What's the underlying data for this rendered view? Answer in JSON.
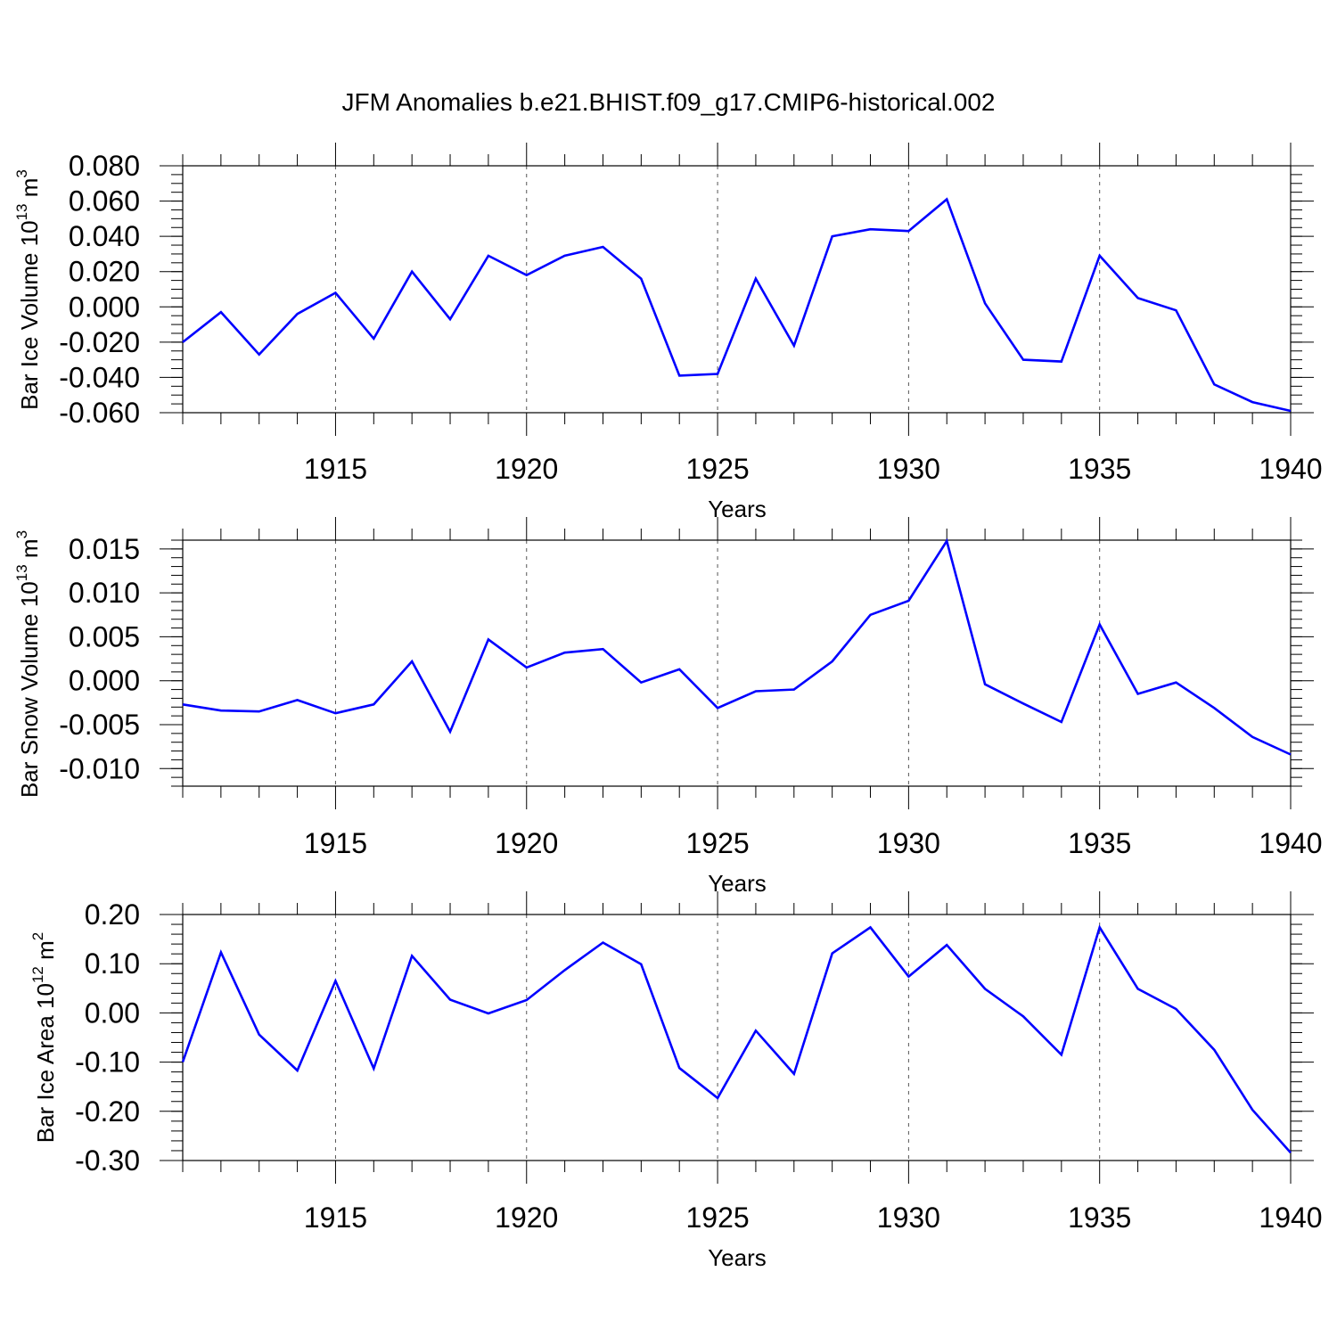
{
  "title": "JFM Anomalies b.e21.BHIST.f09_g17.CMIP6-historical.002",
  "chart_data": [
    {
      "type": "line",
      "ylabel": "Bar Ice Volume",
      "unit_base": "10",
      "unit_exp": "13",
      "unit_name": "m",
      "unit_name_exp": "3",
      "xlabel": "Years",
      "xlim": [
        1911,
        1940
      ],
      "ylim": [
        -0.06,
        0.08
      ],
      "yticks": [
        -0.06,
        -0.04,
        -0.02,
        0.0,
        0.02,
        0.04,
        0.06,
        0.08
      ],
      "yticklabels": [
        "-0.060",
        "-0.040",
        "-0.020",
        "0.000",
        "0.020",
        "0.040",
        "0.060",
        "0.080"
      ],
      "yminor_step": 0.005,
      "xticks": [
        1915,
        1920,
        1925,
        1930,
        1935,
        1940
      ],
      "xticklabels": [
        "1915",
        "1920",
        "1925",
        "1930",
        "1935",
        "1940"
      ],
      "line_color": "#0000ff",
      "x": [
        1911,
        1912,
        1913,
        1914,
        1915,
        1916,
        1917,
        1918,
        1919,
        1920,
        1921,
        1922,
        1923,
        1924,
        1925,
        1926,
        1927,
        1928,
        1929,
        1930,
        1931,
        1932,
        1933,
        1934,
        1935,
        1936,
        1937,
        1938,
        1939,
        1940
      ],
      "y": [
        -0.02,
        -0.003,
        -0.027,
        -0.004,
        0.008,
        -0.018,
        0.02,
        -0.007,
        0.029,
        0.018,
        0.029,
        0.034,
        0.016,
        -0.039,
        -0.038,
        0.016,
        -0.022,
        0.04,
        0.044,
        0.043,
        0.061,
        0.002,
        -0.03,
        -0.031,
        0.029,
        0.005,
        -0.002,
        -0.044,
        -0.054,
        -0.059
      ]
    },
    {
      "type": "line",
      "ylabel": "Bar Snow Volume",
      "unit_base": "10",
      "unit_exp": "13",
      "unit_name": "m",
      "unit_name_exp": "3",
      "xlabel": "Years",
      "xlim": [
        1911,
        1940
      ],
      "ylim": [
        -0.012,
        0.016
      ],
      "yticks": [
        -0.01,
        -0.005,
        0.0,
        0.005,
        0.01,
        0.015
      ],
      "yticklabels": [
        "-0.010",
        "-0.005",
        "0.000",
        "0.005",
        "0.010",
        "0.015"
      ],
      "yminor_step": 0.001,
      "xticks": [
        1915,
        1920,
        1925,
        1930,
        1935,
        1940
      ],
      "xticklabels": [
        "1915",
        "1920",
        "1925",
        "1930",
        "1935",
        "1940"
      ],
      "line_color": "#0000ff",
      "x": [
        1911,
        1912,
        1913,
        1914,
        1915,
        1916,
        1917,
        1918,
        1919,
        1920,
        1921,
        1922,
        1923,
        1924,
        1925,
        1926,
        1927,
        1928,
        1929,
        1930,
        1931,
        1932,
        1933,
        1934,
        1935,
        1936,
        1937,
        1938,
        1939,
        1940
      ],
      "y": [
        -0.0027,
        -0.0034,
        -0.0035,
        -0.0022,
        -0.0037,
        -0.0027,
        0.0022,
        -0.0058,
        0.0047,
        0.0015,
        0.0032,
        0.0036,
        -0.0002,
        0.0013,
        -0.0031,
        -0.0012,
        -0.001,
        0.0022,
        0.0075,
        0.0091,
        0.0159,
        -0.0004,
        -0.0026,
        -0.0047,
        0.0064,
        -0.0015,
        -0.0002,
        -0.0031,
        -0.0064,
        -0.0084
      ]
    },
    {
      "type": "line",
      "ylabel": "Bar Ice Area",
      "unit_base": "10",
      "unit_exp": "12",
      "unit_name": "m",
      "unit_name_exp": "2",
      "xlabel": "Years",
      "xlim": [
        1911,
        1940
      ],
      "ylim": [
        -0.3,
        0.2
      ],
      "yticks": [
        -0.3,
        -0.2,
        -0.1,
        0.0,
        0.1,
        0.2
      ],
      "yticklabels": [
        "-0.30",
        "-0.20",
        "-0.10",
        "0.00",
        "0.10",
        "0.20"
      ],
      "yminor_step": 0.02,
      "xticks": [
        1915,
        1920,
        1925,
        1930,
        1935,
        1940
      ],
      "xticklabels": [
        "1915",
        "1920",
        "1925",
        "1930",
        "1935",
        "1940"
      ],
      "line_color": "#0000ff",
      "x": [
        1911,
        1912,
        1913,
        1914,
        1915,
        1916,
        1917,
        1918,
        1919,
        1920,
        1921,
        1922,
        1923,
        1924,
        1925,
        1926,
        1927,
        1928,
        1929,
        1930,
        1931,
        1932,
        1933,
        1934,
        1935,
        1936,
        1937,
        1938,
        1939,
        1940
      ],
      "y": [
        -0.1,
        0.123,
        -0.044,
        -0.117,
        0.065,
        -0.113,
        0.116,
        0.027,
        -0.001,
        0.026,
        0.087,
        0.143,
        0.099,
        -0.112,
        -0.173,
        -0.036,
        -0.124,
        0.121,
        0.174,
        0.074,
        0.138,
        0.049,
        -0.007,
        -0.085,
        0.174,
        0.049,
        0.008,
        -0.075,
        -0.197,
        -0.284
      ]
    }
  ]
}
